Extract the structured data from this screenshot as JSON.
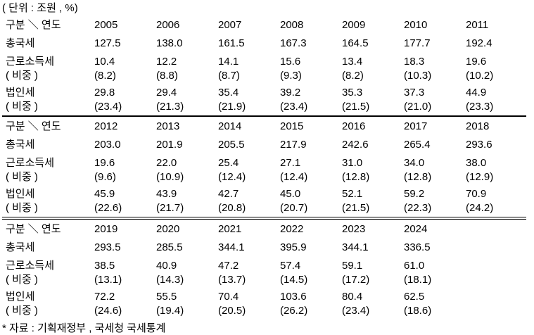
{
  "unit_note": "( 단위 : 조원 , %)",
  "source_note": "* 자료 : 기획재정부 , 국세청 국세통계",
  "header_label": "구분 ＼ 연도",
  "colors": {
    "background": "#ffffff",
    "text": "#000000",
    "rule": "#000000"
  },
  "sections": [
    {
      "years": [
        "2005",
        "2006",
        "2007",
        "2008",
        "2009",
        "2010",
        "2011"
      ],
      "rows": [
        {
          "label": "총국세",
          "values": [
            "127.5",
            "138.0",
            "161.5",
            "167.3",
            "164.5",
            "177.7",
            "192.4"
          ]
        },
        {
          "label": "근로소득세",
          "values": [
            "10.4",
            "12.2",
            "14.1",
            "15.6",
            "13.4",
            "18.3",
            "19.6"
          ]
        },
        {
          "label": "( 비중 )",
          "values": [
            "(8.2)",
            "(8.8)",
            "(8.7)",
            "(9.3)",
            "(8.2)",
            "(10.3)",
            "(10.2)"
          ]
        },
        {
          "label": "법인세",
          "values": [
            "29.8",
            "29.4",
            "35.4",
            "39.2",
            "35.3",
            "37.3",
            "44.9"
          ]
        },
        {
          "label": "( 비중 )",
          "values": [
            "(23.4)",
            "(21.3)",
            "(21.9)",
            "(23.4)",
            "(21.5)",
            "(21.0)",
            "(23.3)"
          ]
        }
      ]
    },
    {
      "years": [
        "2012",
        "2013",
        "2014",
        "2015",
        "2016",
        "2017",
        "2018"
      ],
      "rows": [
        {
          "label": "총국세",
          "values": [
            "203.0",
            "201.9",
            "205.5",
            "217.9",
            "242.6",
            "265.4",
            "293.6"
          ]
        },
        {
          "label": "근로소득세",
          "values": [
            "19.6",
            "22.0",
            "25.4",
            "27.1",
            "31.0",
            "34.0",
            "38.0"
          ]
        },
        {
          "label": "( 비중 )",
          "values": [
            "(9.6)",
            "(10.9)",
            "(12.4)",
            "(12.4)",
            "(12.8)",
            "(12.8)",
            "(12.9)"
          ]
        },
        {
          "label": "법인세",
          "values": [
            "45.9",
            "43.9",
            "42.7",
            "45.0",
            "52.1",
            "59.2",
            "70.9"
          ]
        },
        {
          "label": "( 비중 )",
          "values": [
            "(22.6)",
            "(21.7)",
            "(20.8)",
            "(20.7)",
            "(21.5)",
            "(22.3)",
            "(24.2)"
          ]
        }
      ]
    },
    {
      "years": [
        "2019",
        "2020",
        "2021",
        "2022",
        "2023",
        "2024"
      ],
      "rows": [
        {
          "label": "총국세",
          "values": [
            "293.5",
            "285.5",
            "344.1",
            "395.9",
            "344.1",
            "336.5"
          ]
        },
        {
          "label": "근로소득세",
          "values": [
            "38.5",
            "40.9",
            "47.2",
            "57.4",
            "59.1",
            "61.0"
          ]
        },
        {
          "label": "( 비중 )",
          "values": [
            "(13.1)",
            "(14.3)",
            "(13.7)",
            "(14.5)",
            "(17.2)",
            "(18.1)"
          ]
        },
        {
          "label": "법인세",
          "values": [
            "72.2",
            "55.5",
            "70.4",
            "103.6",
            "80.4",
            "62.5"
          ]
        },
        {
          "label": "( 비중 )",
          "values": [
            "(24.6)",
            "(19.4)",
            "(20.5)",
            "(26.2)",
            "(23.4)",
            "(18.6)"
          ]
        }
      ]
    }
  ]
}
